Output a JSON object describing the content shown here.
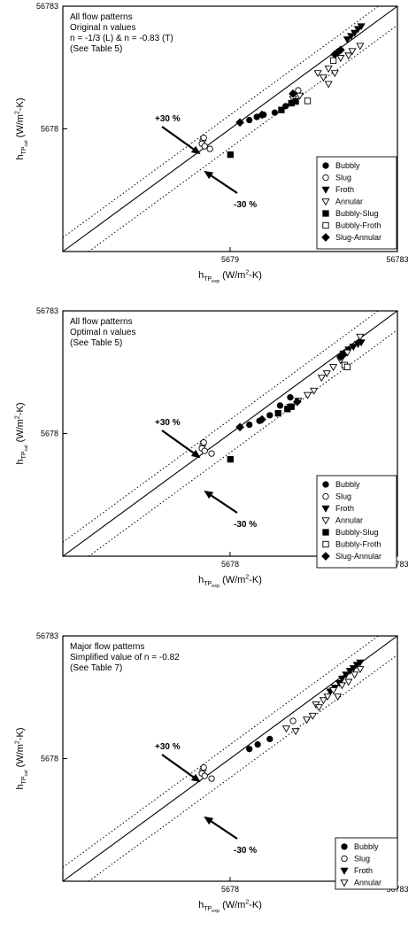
{
  "chart_data": [
    {
      "type": "scatter",
      "annotation": [
        "All flow patterns",
        "Original n values",
        "n = -1/3 (L) & n = -0.83 (T)",
        "(See Table 5)"
      ],
      "xlabel": {
        "main": "h",
        "sub": "TP",
        "subsub": "exp",
        "unit": "(W/m",
        "sup": "2",
        "tail": "-K)"
      },
      "ylabel": {
        "main": "h",
        "sub": "TP",
        "subsub": "cal",
        "unit": "(W/m",
        "sup": "2",
        "tail": "-K)"
      },
      "x_ticks": [
        "5679",
        "56783"
      ],
      "y_ticks": [
        "5678",
        "56783"
      ],
      "xlim": [
        568,
        56783
      ],
      "ylim": [
        568,
        56783
      ],
      "scale": "log",
      "band_labels": [
        "+30 %",
        "-30 %"
      ],
      "legend": [
        "Bubbly",
        "Slug",
        "Froth",
        "Annular",
        "Bubbly-Slug",
        "Bubbly-Froth",
        "Slug-Annular"
      ],
      "series": [
        {
          "name": "Bubbly",
          "marker": "circle-filled",
          "points": [
            [
              7400,
              6700
            ],
            [
              8200,
              7100
            ],
            [
              9000,
              7400
            ],
            [
              10500,
              7700
            ],
            [
              12200,
              8700
            ]
          ]
        },
        {
          "name": "Slug",
          "marker": "circle-open",
          "points": [
            [
              3900,
              4600
            ],
            [
              3950,
              4800
            ],
            [
              3850,
              4300
            ],
            [
              4000,
              4100
            ],
            [
              4300,
              3900
            ],
            [
              14500,
              11700
            ]
          ]
        },
        {
          "name": "Froth",
          "marker": "triangle-down-filled",
          "points": [
            [
              28500,
              30500
            ],
            [
              30000,
              32500
            ],
            [
              31500,
              34500
            ],
            [
              33000,
              37000
            ],
            [
              34500,
              39000
            ]
          ]
        },
        {
          "name": "Annular",
          "marker": "triangle-down-open",
          "points": [
            [
              13500,
              10000
            ],
            [
              14800,
              10600
            ],
            [
              19000,
              16200
            ],
            [
              22000,
              17600
            ],
            [
              24000,
              16200
            ],
            [
              20500,
              14900
            ],
            [
              22000,
              13200
            ],
            [
              26000,
              21500
            ],
            [
              29000,
              22500
            ],
            [
              30500,
              24500
            ],
            [
              34000,
              27000
            ]
          ]
        },
        {
          "name": "Bubbly-Slug",
          "marker": "square-filled",
          "points": [
            [
              5700,
              3500
            ],
            [
              11500,
              8100
            ],
            [
              13200,
              9200
            ],
            [
              14000,
              9500
            ]
          ]
        },
        {
          "name": "Bubbly-Froth",
          "marker": "square-open",
          "points": [
            [
              16500,
              9600
            ],
            [
              23500,
              20500
            ]
          ]
        },
        {
          "name": "Slug-Annular",
          "marker": "diamond-filled",
          "points": [
            [
              6500,
              6400
            ],
            [
              8800,
              7400
            ],
            [
              13500,
              11000
            ],
            [
              24000,
              23000
            ],
            [
              25000,
              24000
            ],
            [
              26000,
              25000
            ]
          ]
        }
      ]
    },
    {
      "type": "scatter",
      "annotation": [
        "All flow patterns",
        "Optimal n values",
        "(See Table 5)"
      ],
      "xlabel": {
        "main": "h",
        "sub": "TP",
        "subsub": "exp",
        "unit": "(W/m",
        "sup": "2",
        "tail": "-K)"
      },
      "ylabel": {
        "main": "h",
        "sub": "TP",
        "subsub": "cal",
        "unit": "(W/m",
        "sup": "2",
        "tail": "-K)"
      },
      "x_ticks": [
        "5678",
        "56783"
      ],
      "y_ticks": [
        "5678",
        "56783"
      ],
      "xlim": [
        568,
        56783
      ],
      "ylim": [
        568,
        56783
      ],
      "scale": "log",
      "band_labels": [
        "+30 %",
        "-30 %"
      ],
      "legend": [
        "Bubbly",
        "Slug",
        "Froth",
        "Annular",
        "Bubbly-Slug",
        "Bubbly-Froth",
        "Slug-Annular"
      ],
      "series": [
        {
          "name": "Bubbly",
          "marker": "circle-filled",
          "points": [
            [
              7400,
              6700
            ],
            [
              8500,
              7200
            ],
            [
              9800,
              8000
            ],
            [
              11300,
              9600
            ],
            [
              13000,
              11200
            ]
          ]
        },
        {
          "name": "Slug",
          "marker": "circle-open",
          "points": [
            [
              3900,
              4600
            ],
            [
              3950,
              4800
            ],
            [
              3850,
              4300
            ],
            [
              4000,
              4100
            ],
            [
              4400,
              3900
            ]
          ]
        },
        {
          "name": "Froth",
          "marker": "triangle-down-filled",
          "points": [
            [
              27000,
              25500
            ],
            [
              29000,
              27500
            ],
            [
              31000,
              29000
            ],
            [
              33000,
              30500
            ],
            [
              34500,
              31500
            ]
          ]
        },
        {
          "name": "Annular",
          "marker": "triangle-down-open",
          "points": [
            [
              13000,
              9400
            ],
            [
              14500,
              10500
            ],
            [
              16500,
              11700
            ],
            [
              18000,
              12700
            ],
            [
              20000,
              16200
            ],
            [
              21500,
              17600
            ],
            [
              23500,
              19800
            ],
            [
              26000,
              22500
            ],
            [
              28500,
              26000
            ],
            [
              34000,
              35000
            ]
          ]
        },
        {
          "name": "Bubbly-Slug",
          "marker": "square-filled",
          "points": [
            [
              5700,
              3500
            ],
            [
              11000,
              8300
            ],
            [
              12500,
              9000
            ],
            [
              13200,
              9400
            ]
          ]
        },
        {
          "name": "Bubbly-Froth",
          "marker": "square-open",
          "points": [
            [
              27500,
              20500
            ],
            [
              28500,
              19800
            ]
          ]
        },
        {
          "name": "Slug-Annular",
          "marker": "diamond-filled",
          "points": [
            [
              6500,
              6400
            ],
            [
              8800,
              7400
            ],
            [
              14300,
              10300
            ],
            [
              26000,
              24000
            ],
            [
              27000,
              25000
            ]
          ]
        }
      ]
    },
    {
      "type": "scatter",
      "annotation": [
        "Major flow patterns",
        "Simplified value of n = -0.82",
        "(See Table 7)"
      ],
      "xlabel": {
        "main": "h",
        "sub": "TP",
        "subsub": "exp",
        "unit": "(W/m",
        "sup": "2",
        "tail": "-K)"
      },
      "ylabel": {
        "main": "h",
        "sub": "TP",
        "subsub": "cal",
        "unit": "(W/m",
        "sup": "2",
        "tail": "-K)"
      },
      "x_ticks": [
        "5678",
        "56783"
      ],
      "y_ticks": [
        "5678",
        "56783"
      ],
      "xlim": [
        568,
        56783
      ],
      "ylim": [
        568,
        56783
      ],
      "scale": "log",
      "band_labels": [
        "+30 %",
        "-30 %"
      ],
      "legend": [
        "Bubbly",
        "Slug",
        "Froth",
        "Annular"
      ],
      "series": [
        {
          "name": "Bubbly",
          "marker": "circle-filled",
          "points": [
            [
              7400,
              6800
            ],
            [
              8300,
              7400
            ],
            [
              9800,
              8200
            ]
          ]
        },
        {
          "name": "Slug",
          "marker": "circle-open",
          "points": [
            [
              3900,
              4600
            ],
            [
              3950,
              4800
            ],
            [
              3850,
              4300
            ],
            [
              4000,
              4100
            ],
            [
              4400,
              3900
            ],
            [
              13500,
              11500
            ]
          ]
        },
        {
          "name": "Froth",
          "marker": "triangle-down-filled",
          "points": [
            [
              26500,
              25500
            ],
            [
              28000,
              27500
            ],
            [
              29500,
              29500
            ],
            [
              31000,
              31000
            ],
            [
              32500,
              33000
            ],
            [
              34000,
              34500
            ],
            [
              22500,
              20000
            ],
            [
              24000,
              21500
            ],
            [
              25500,
              23500
            ]
          ]
        },
        {
          "name": "Annular",
          "marker": "triangle-down-open",
          "points": [
            [
              12300,
              10000
            ],
            [
              14000,
              9500
            ],
            [
              16300,
              11800
            ],
            [
              17700,
              12700
            ],
            [
              18500,
              15700
            ],
            [
              19300,
              14900
            ],
            [
              20500,
              17000
            ],
            [
              21700,
              18200
            ],
            [
              23500,
              20500
            ],
            [
              25000,
              18200
            ],
            [
              26500,
              22500
            ],
            [
              29000,
              24000
            ],
            [
              31500,
              27500
            ],
            [
              34000,
              30500
            ]
          ]
        }
      ]
    }
  ]
}
